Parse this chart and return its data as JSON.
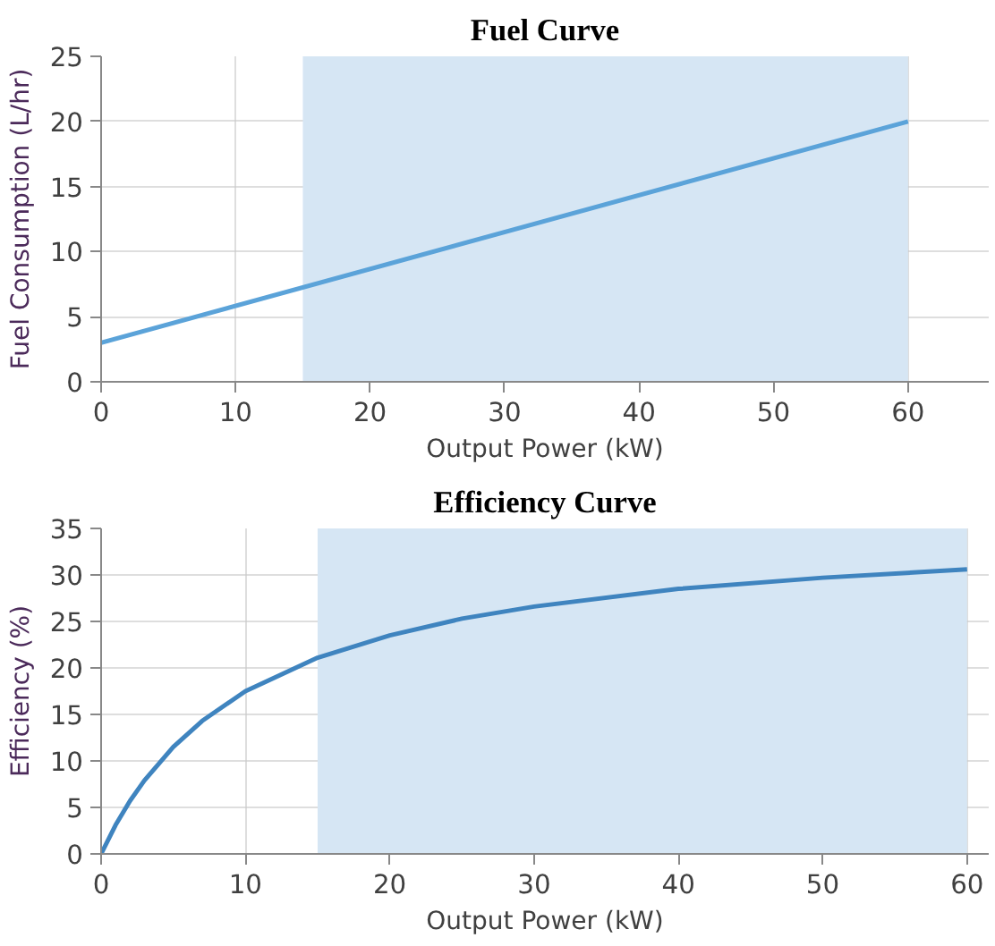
{
  "chart_data": [
    {
      "type": "line",
      "title": "Fuel Curve",
      "xlabel": "Output Power (kW)",
      "ylabel": "Fuel Consumption (L/hr)",
      "x": [
        0,
        60
      ],
      "values": [
        3,
        20
      ],
      "color": "#5ba3d9",
      "xlim": [
        0,
        66
      ],
      "xticks": [
        0,
        10,
        20,
        30,
        40,
        50,
        60
      ],
      "ylim": [
        0,
        25
      ],
      "yticks": [
        0,
        5,
        10,
        15,
        20,
        25
      ],
      "grid": true,
      "bands": [
        {
          "axis": "x",
          "from": 15,
          "to": 60,
          "color": "#d6e6f4"
        }
      ]
    },
    {
      "type": "line",
      "title": "Efficiency Curve",
      "xlabel": "Output Power (kW)",
      "ylabel": "Efficiency (%)",
      "x": [
        0,
        1,
        2,
        3,
        5,
        7,
        10,
        15,
        20,
        25,
        30,
        40,
        50,
        60
      ],
      "values": [
        0,
        3.1,
        5.7,
        7.9,
        11.5,
        14.3,
        17.5,
        21.1,
        23.5,
        25.3,
        26.6,
        28.5,
        29.7,
        30.6
      ],
      "color": "#3f84bf",
      "xlim": [
        0,
        61.5
      ],
      "xticks": [
        0,
        10,
        20,
        30,
        40,
        50,
        60
      ],
      "ylim": [
        0,
        35
      ],
      "yticks": [
        0,
        5,
        10,
        15,
        20,
        25,
        30,
        35
      ],
      "grid": true,
      "bands": [
        {
          "axis": "x",
          "from": 15,
          "to": 60,
          "color": "#d6e6f4"
        }
      ]
    }
  ]
}
